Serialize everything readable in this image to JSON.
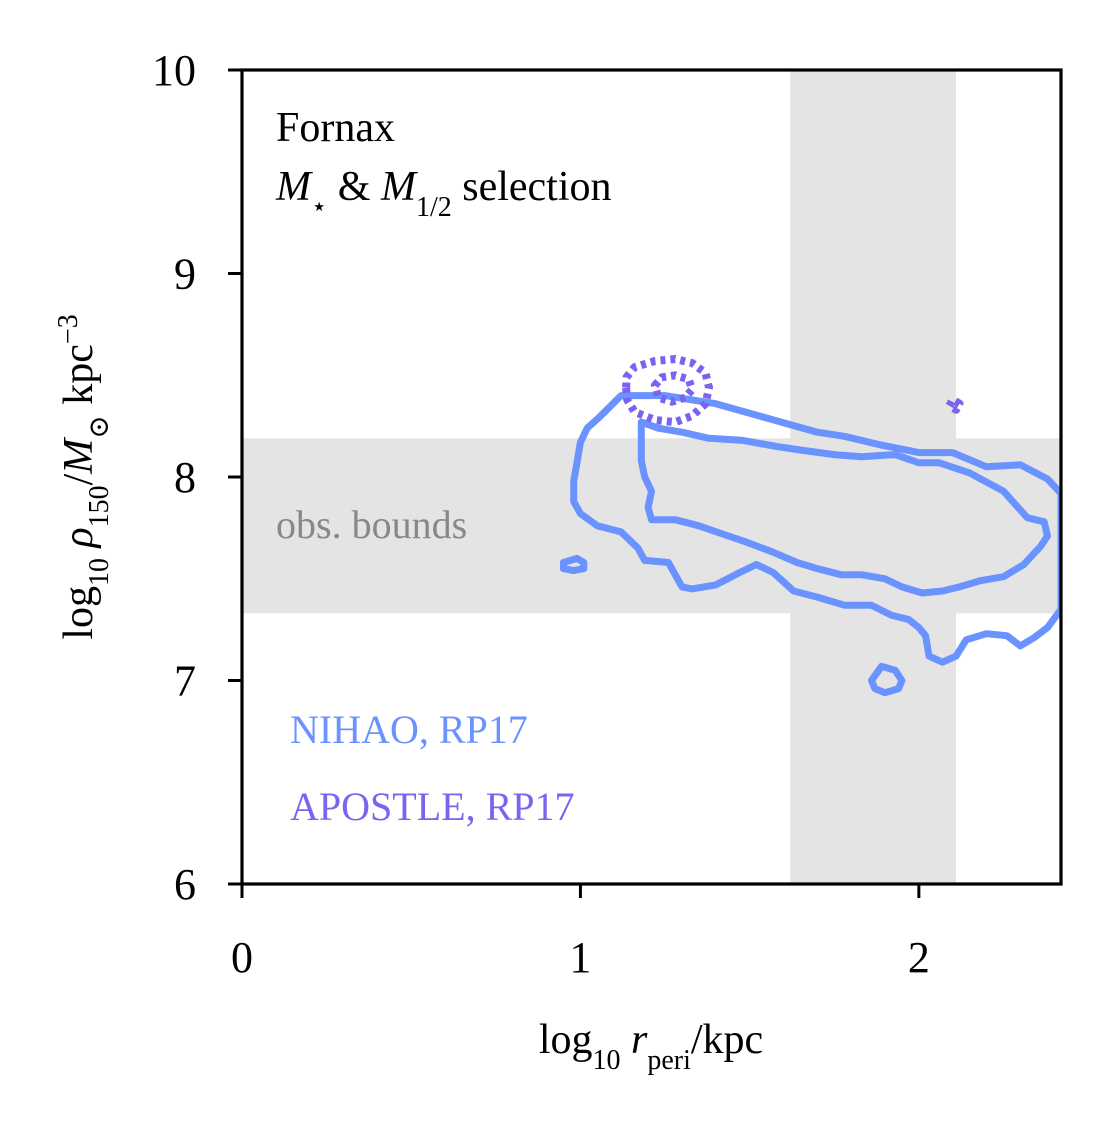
{
  "chart_data": {
    "type": "contour",
    "title": "",
    "annotation": {
      "line1": "Fornax",
      "line2_html": "M★ & M1/2 selection"
    },
    "xlabel": "log10 r_peri / kpc",
    "ylabel": "log10 ρ150 / M⊙ kpc⁻³",
    "xlim": [
      0,
      2.42
    ],
    "ylim": [
      6,
      10
    ],
    "xticks": [
      0,
      1,
      2
    ],
    "yticks": [
      6,
      7,
      8,
      9,
      10
    ],
    "xtick_labels": [
      "0",
      "1",
      "2"
    ],
    "ytick_labels": [
      "6",
      "7",
      "8",
      "9",
      "10"
    ],
    "grid": false,
    "observed_bounds": {
      "label": "obs. bounds",
      "x_range": [
        1.62,
        2.11
      ],
      "y_range": [
        7.33,
        8.19
      ],
      "color": "#e4e4e4",
      "label_color": "#888888"
    },
    "legend_placement": "lower-left",
    "series": [
      {
        "name": "NIHAO, RP17",
        "color": "#6a93ff",
        "style": "solid",
        "contours": [
          [
            [
              1.12,
              8.4
            ],
            [
              1.25,
              8.4
            ],
            [
              1.4,
              8.36
            ],
            [
              1.55,
              8.29
            ],
            [
              1.7,
              8.22
            ],
            [
              1.78,
              8.2
            ],
            [
              1.88,
              8.16
            ],
            [
              2.0,
              8.12
            ],
            [
              2.1,
              8.12
            ],
            [
              2.2,
              8.05
            ],
            [
              2.3,
              8.06
            ],
            [
              2.38,
              7.99
            ],
            [
              2.42,
              7.92
            ],
            [
              2.42,
              7.35
            ],
            [
              2.38,
              7.26
            ],
            [
              2.34,
              7.21
            ],
            [
              2.3,
              7.17
            ],
            [
              2.26,
              7.22
            ],
            [
              2.2,
              7.23
            ],
            [
              2.14,
              7.2
            ],
            [
              2.11,
              7.12
            ],
            [
              2.07,
              7.09
            ],
            [
              2.03,
              7.12
            ],
            [
              2.02,
              7.22
            ],
            [
              2.0,
              7.26
            ],
            [
              1.97,
              7.3
            ],
            [
              1.92,
              7.32
            ],
            [
              1.86,
              7.37
            ],
            [
              1.78,
              7.37
            ],
            [
              1.7,
              7.41
            ],
            [
              1.63,
              7.44
            ],
            [
              1.57,
              7.53
            ],
            [
              1.52,
              7.57
            ],
            [
              1.47,
              7.53
            ],
            [
              1.4,
              7.47
            ],
            [
              1.33,
              7.45
            ],
            [
              1.3,
              7.46
            ],
            [
              1.28,
              7.52
            ],
            [
              1.26,
              7.58
            ],
            [
              1.19,
              7.59
            ],
            [
              1.17,
              7.65
            ],
            [
              1.12,
              7.73
            ],
            [
              1.05,
              7.76
            ],
            [
              1.0,
              7.82
            ],
            [
              0.98,
              7.88
            ],
            [
              0.98,
              7.98
            ],
            [
              0.99,
              8.07
            ],
            [
              1.0,
              8.17
            ],
            [
              1.02,
              8.24
            ],
            [
              1.06,
              8.3
            ],
            [
              1.12,
              8.4
            ]
          ],
          [
            [
              1.18,
              8.27
            ],
            [
              1.23,
              8.24
            ],
            [
              1.3,
              8.22
            ],
            [
              1.38,
              8.19
            ],
            [
              1.48,
              8.18
            ],
            [
              1.58,
              8.15
            ],
            [
              1.66,
              8.13
            ],
            [
              1.75,
              8.11
            ],
            [
              1.83,
              8.1
            ],
            [
              1.93,
              8.11
            ],
            [
              2.0,
              8.07
            ],
            [
              2.06,
              8.07
            ],
            [
              2.15,
              8.02
            ],
            [
              2.25,
              7.93
            ],
            [
              2.32,
              7.8
            ],
            [
              2.37,
              7.78
            ],
            [
              2.38,
              7.71
            ],
            [
              2.36,
              7.66
            ],
            [
              2.31,
              7.57
            ],
            [
              2.25,
              7.51
            ],
            [
              2.18,
              7.49
            ],
            [
              2.12,
              7.46
            ],
            [
              2.07,
              7.44
            ],
            [
              2.01,
              7.43
            ],
            [
              1.95,
              7.46
            ],
            [
              1.9,
              7.5
            ],
            [
              1.83,
              7.52
            ],
            [
              1.77,
              7.52
            ],
            [
              1.7,
              7.55
            ],
            [
              1.64,
              7.58
            ],
            [
              1.57,
              7.63
            ],
            [
              1.49,
              7.68
            ],
            [
              1.42,
              7.72
            ],
            [
              1.35,
              7.76
            ],
            [
              1.28,
              7.79
            ],
            [
              1.21,
              7.79
            ],
            [
              1.2,
              7.85
            ],
            [
              1.21,
              7.93
            ],
            [
              1.19,
              8.0
            ],
            [
              1.18,
              8.08
            ],
            [
              1.18,
              8.17
            ],
            [
              1.18,
              8.27
            ]
          ],
          [
            [
              0.95,
              7.58
            ],
            [
              0.99,
              7.6
            ],
            [
              1.01,
              7.58
            ],
            [
              1.01,
              7.55
            ],
            [
              0.98,
              7.54
            ],
            [
              0.95,
              7.55
            ],
            [
              0.95,
              7.58
            ]
          ],
          [
            [
              1.86,
              7.0
            ],
            [
              1.89,
              7.07
            ],
            [
              1.93,
              7.05
            ],
            [
              1.95,
              7.0
            ],
            [
              1.94,
              6.96
            ],
            [
              1.9,
              6.94
            ],
            [
              1.87,
              6.96
            ],
            [
              1.86,
              7.0
            ]
          ]
        ]
      },
      {
        "name": "APOSTLE, RP17",
        "color": "#7b63ef",
        "style": "dashed",
        "contours": [
          [
            [
              1.135,
              8.44
            ],
            [
              1.136,
              8.49
            ],
            [
              1.16,
              8.54
            ],
            [
              1.22,
              8.57
            ],
            [
              1.28,
              8.58
            ],
            [
              1.33,
              8.56
            ],
            [
              1.37,
              8.51
            ],
            [
              1.38,
              8.44
            ],
            [
              1.37,
              8.36
            ],
            [
              1.33,
              8.3
            ],
            [
              1.28,
              8.27
            ],
            [
              1.22,
              8.28
            ],
            [
              1.16,
              8.32
            ],
            [
              1.138,
              8.38
            ],
            [
              1.135,
              8.44
            ]
          ],
          [
            [
              1.22,
              8.45
            ],
            [
              1.24,
              8.49
            ],
            [
              1.28,
              8.5
            ],
            [
              1.32,
              8.48
            ],
            [
              1.33,
              8.43
            ],
            [
              1.31,
              8.39
            ],
            [
              1.27,
              8.37
            ],
            [
              1.23,
              8.39
            ],
            [
              1.22,
              8.45
            ]
          ],
          [
            [
              2.09,
              8.35
            ],
            [
              2.1,
              8.38
            ],
            [
              2.12,
              8.36
            ],
            [
              2.11,
              8.33
            ],
            [
              2.09,
              8.35
            ]
          ]
        ]
      }
    ]
  }
}
